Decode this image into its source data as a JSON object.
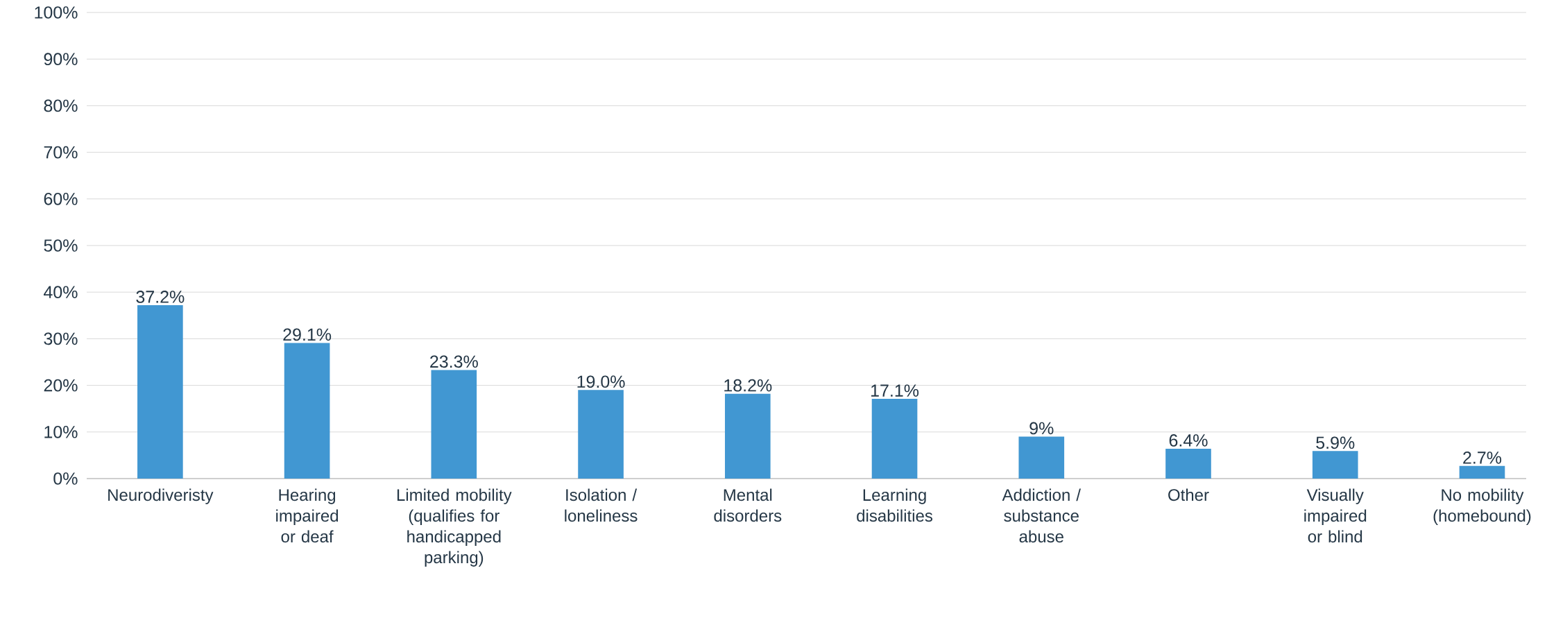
{
  "chart_data": {
    "type": "bar",
    "categories": [
      "Neurodiveristy",
      "Hearing impaired or deaf",
      "Limited mobility (qualifies for handicapped parking)",
      "Isolation / loneliness",
      "Mental disorders",
      "Learning disabilities",
      "Addiction / substance abuse",
      "Other",
      "Visually impaired or blind",
      "No mobility (homebound)"
    ],
    "values": [
      37.2,
      29.1,
      23.3,
      19.0,
      18.2,
      17.1,
      9,
      6.4,
      5.9,
      2.7
    ],
    "value_labels": [
      "37.2%",
      "29.1%",
      "23.3%",
      "19.0%",
      "18.2%",
      "17.1%",
      "9%",
      "6.4%",
      "5.9%",
      "2.7%"
    ],
    "color": "#4197d2",
    "ylim": [
      0,
      100
    ],
    "yticks": [
      {
        "value": 0,
        "label": "0%"
      },
      {
        "value": 10,
        "label": "10%"
      },
      {
        "value": 20,
        "label": "20%"
      },
      {
        "value": 30,
        "label": "30%"
      },
      {
        "value": 40,
        "label": "40%"
      },
      {
        "value": 50,
        "label": "50%"
      },
      {
        "value": 60,
        "label": "60%"
      },
      {
        "value": 70,
        "label": "70%"
      },
      {
        "value": 80,
        "label": "80%"
      },
      {
        "value": 90,
        "label": "90%"
      },
      {
        "value": 100,
        "label": "100%"
      }
    ],
    "grid": "y"
  }
}
